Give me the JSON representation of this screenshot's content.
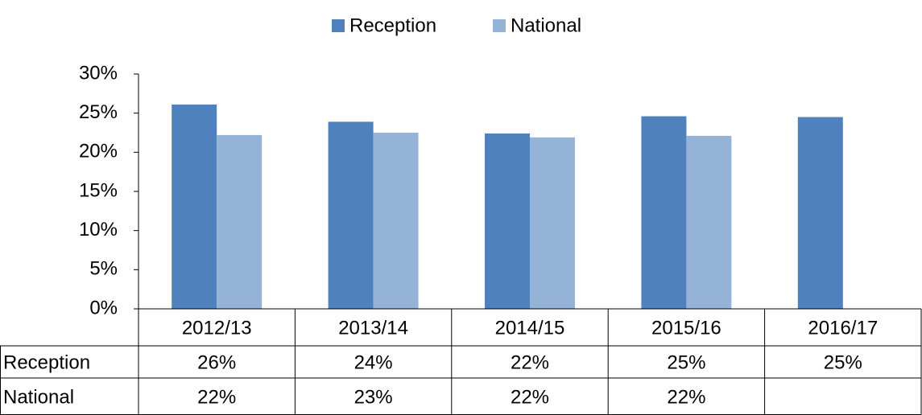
{
  "chart_data": {
    "type": "bar",
    "categories": [
      "2012/13",
      "2013/14",
      "2014/15",
      "2015/16",
      "2016/17"
    ],
    "series": [
      {
        "name": "Reception",
        "color": "#4f81bd",
        "values": [
          26.1,
          23.9,
          22.4,
          24.6,
          24.5
        ],
        "value_labels": [
          "26%",
          "24%",
          "22%",
          "25%",
          "25%"
        ]
      },
      {
        "name": "National",
        "color": "#95b3d7",
        "values": [
          22.2,
          22.5,
          21.9,
          22.1,
          null
        ],
        "value_labels": [
          "22%",
          "23%",
          "22%",
          "22%",
          null
        ]
      }
    ],
    "ylim": [
      0,
      30
    ],
    "yticks": [
      {
        "value": 0,
        "label": "0%"
      },
      {
        "value": 5,
        "label": "5%"
      },
      {
        "value": 10,
        "label": "10%"
      },
      {
        "value": 15,
        "label": "15%"
      },
      {
        "value": 20,
        "label": "20%"
      },
      {
        "value": 25,
        "label": "25%"
      },
      {
        "value": 30,
        "label": "30%"
      }
    ],
    "legend": "top",
    "grid": false
  }
}
